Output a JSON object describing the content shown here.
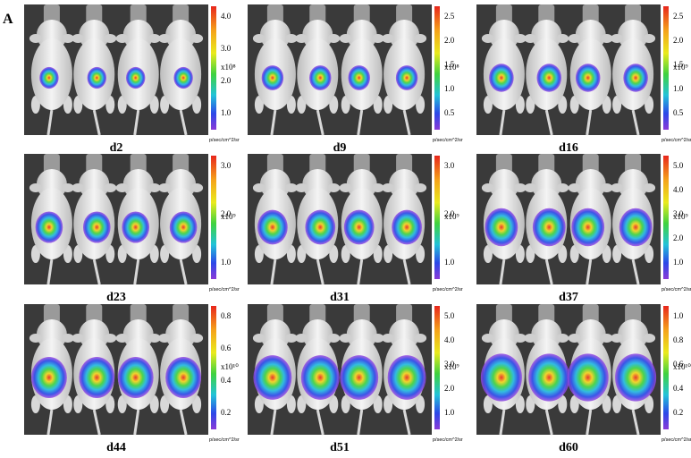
{
  "figure_label": "A",
  "panels": [
    {
      "label": "d2",
      "scale_ticks": [
        "4.0",
        "3.0",
        "2.0",
        "1.0"
      ],
      "exponent": "x10⁸",
      "unit": "p/sec/cm^2/sr"
    },
    {
      "label": "d9",
      "scale_ticks": [
        "2.5",
        "2.0",
        "1.5",
        "1.0",
        "0.5"
      ],
      "exponent": "x10⁸",
      "unit": "p/sec/cm^2/sr"
    },
    {
      "label": "d16",
      "scale_ticks": [
        "2.5",
        "2.0",
        "1.5",
        "1.0",
        "0.5"
      ],
      "exponent": "x10⁹",
      "unit": "p/sec/cm^2/sr"
    },
    {
      "label": "d23",
      "scale_ticks": [
        "3.0",
        "2.0",
        "1.0"
      ],
      "exponent": "x10⁹",
      "unit": "p/sec/cm^2/sr"
    },
    {
      "label": "d31",
      "scale_ticks": [
        "3.0",
        "2.0",
        "1.0"
      ],
      "exponent": "x10⁹",
      "unit": "p/sec/cm^2/sr"
    },
    {
      "label": "d37",
      "scale_ticks": [
        "5.0",
        "4.0",
        "3.0",
        "2.0",
        "1.0"
      ],
      "exponent": "x10⁹",
      "unit": "p/sec/cm^2/sr"
    },
    {
      "label": "d44",
      "scale_ticks": [
        "0.8",
        "0.6",
        "0.4",
        "0.2"
      ],
      "exponent": "x10¹⁰",
      "unit": "p/sec/cm^2/sr"
    },
    {
      "label": "d51",
      "scale_ticks": [
        "5.0",
        "4.0",
        "3.0",
        "2.0",
        "1.0"
      ],
      "exponent": "x10⁹",
      "unit": "p/sec/cm^2/sr"
    },
    {
      "label": "d60",
      "scale_ticks": [
        "1.0",
        "0.8",
        "0.6",
        "0.4",
        "0.2"
      ],
      "exponent": "x10¹⁰",
      "unit": "p/sec/cm^2/sr"
    }
  ]
}
